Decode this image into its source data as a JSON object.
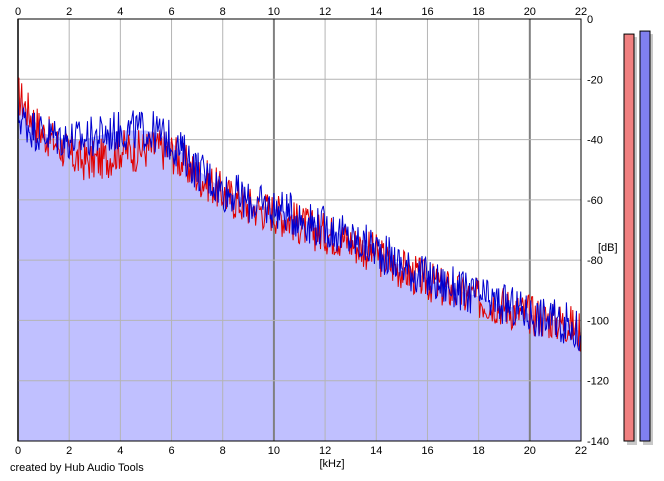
{
  "chart_data": {
    "type": "area",
    "title": "",
    "xlabel": "[kHz]",
    "ylabel": "[dB]",
    "xlim": [
      0,
      22
    ],
    "ylim": [
      -140,
      0
    ],
    "x_ticks": [
      "0",
      "2",
      "4",
      "6",
      "8",
      "10",
      "12",
      "14",
      "16",
      "18",
      "20",
      "22"
    ],
    "y_ticks": [
      "0",
      "-20",
      "-40",
      "-60",
      "-80",
      "-100",
      "-120",
      "-140"
    ],
    "grid": true,
    "series": [
      {
        "color": "#e00000",
        "x": [
          0,
          0.5,
          1,
          1.5,
          2,
          2.5,
          3,
          3.5,
          4,
          4.5,
          5,
          5.5,
          6,
          6.5,
          7,
          7.5,
          8,
          8.5,
          9,
          9.5,
          10,
          10.5,
          11,
          11.5,
          12,
          12.5,
          13,
          13.5,
          14,
          14.5,
          15,
          15.5,
          16,
          16.5,
          17,
          17.5,
          18,
          18.5,
          19,
          19.5,
          20,
          20.5,
          21,
          21.5,
          22
        ],
        "values": [
          -25,
          -32,
          -38,
          -41,
          -45,
          -47,
          -47,
          -46,
          -43,
          -44,
          -43,
          -43,
          -44,
          -48,
          -52,
          -54,
          -58,
          -60,
          -62,
          -63,
          -64,
          -66,
          -68,
          -70,
          -71,
          -72,
          -74,
          -76,
          -78,
          -81,
          -83,
          -85,
          -87,
          -89,
          -90,
          -92,
          -93,
          -94,
          -95,
          -97,
          -98,
          -99,
          -100,
          -101,
          -104
        ]
      },
      {
        "color": "#0000d0",
        "x": [
          0,
          0.5,
          1,
          1.5,
          2,
          2.5,
          3,
          3.5,
          4,
          4.5,
          5,
          5.5,
          6,
          6.5,
          7,
          7.5,
          8,
          8.5,
          9,
          9.5,
          10,
          10.5,
          11,
          11.5,
          12,
          12.5,
          13,
          13.5,
          14,
          14.5,
          15,
          15.5,
          16,
          16.5,
          17,
          17.5,
          18,
          18.5,
          19,
          19.5,
          20,
          20.5,
          21,
          21.5,
          22
        ],
        "values": [
          -32,
          -36,
          -38,
          -39,
          -40,
          -40,
          -39,
          -38,
          -37,
          -37,
          -37,
          -38,
          -41,
          -45,
          -50,
          -53,
          -57,
          -58,
          -61,
          -62,
          -63,
          -64,
          -66,
          -68,
          -69,
          -71,
          -73,
          -75,
          -76,
          -79,
          -82,
          -84,
          -86,
          -88,
          -89,
          -91,
          -92,
          -94,
          -95,
          -96,
          -98,
          -99,
          -100,
          -101,
          -105
        ]
      }
    ],
    "meters": [
      {
        "color": "#f08080",
        "value": -5
      },
      {
        "color": "#8080f0",
        "value": -4
      }
    ]
  },
  "credit": "created by Hub Audio Tools"
}
